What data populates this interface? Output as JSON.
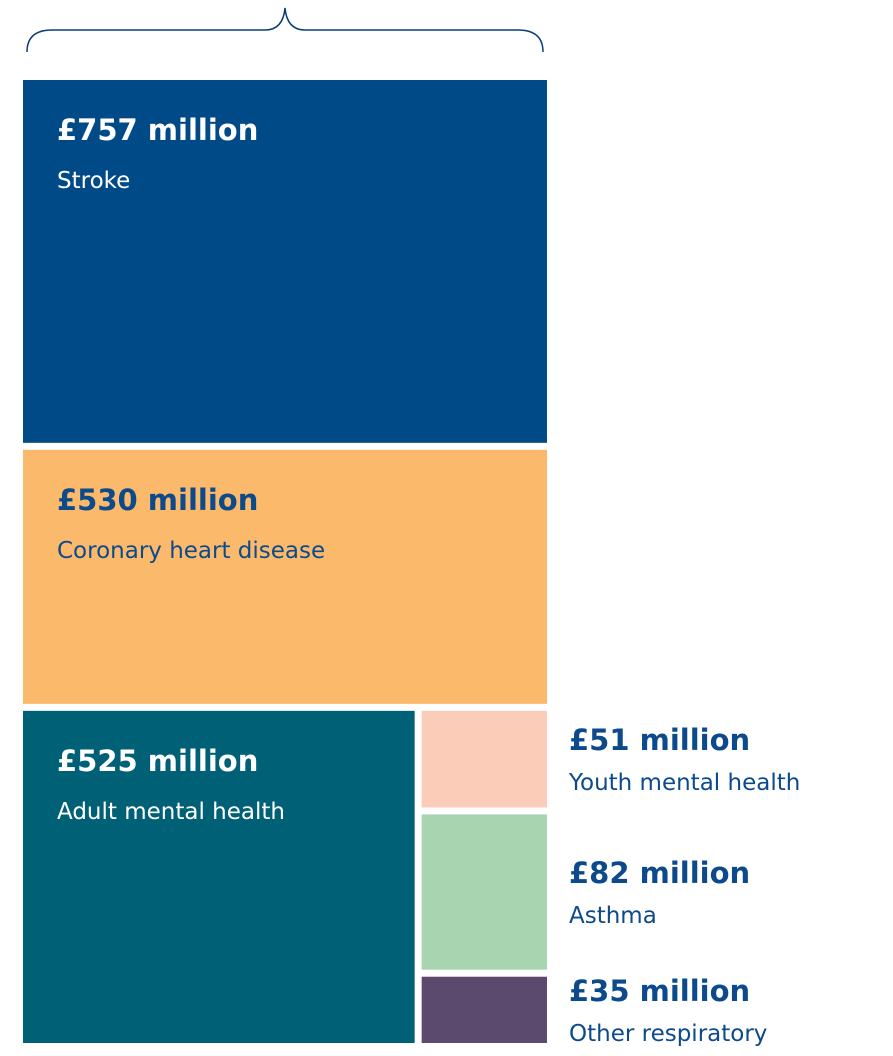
{
  "chart_data": {
    "type": "treemap",
    "categories": [
      "Stroke",
      "Coronary heart disease",
      "Adult mental health",
      "Youth mental health",
      "Asthma",
      "Other respiratory"
    ],
    "values": [
      757,
      530,
      525,
      51,
      82,
      35
    ],
    "value_labels": [
      "£757 million",
      "£530 million",
      "£525 million",
      "£51 million",
      "£82 million",
      "£35 million"
    ],
    "colors": [
      "#004a87",
      "#fbb96b",
      "#006176",
      "#fbcdb9",
      "#a8d5b0",
      "#5c4a6e"
    ]
  }
}
